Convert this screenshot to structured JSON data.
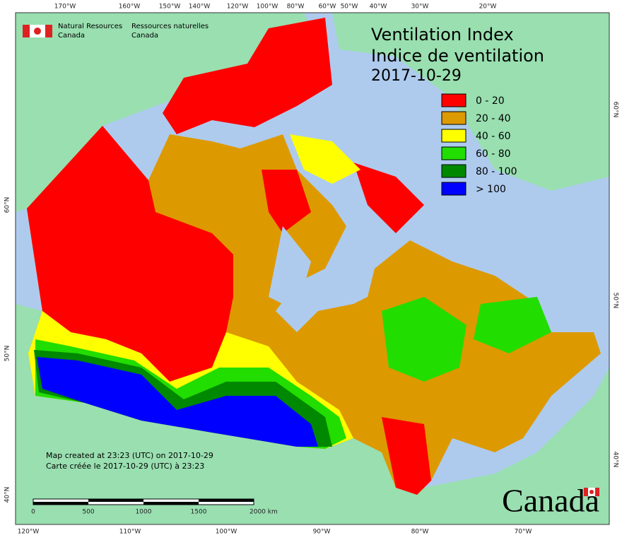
{
  "header": {
    "agency_en": [
      "Natural Resources",
      "Canada"
    ],
    "agency_fr": [
      "Ressources naturelles",
      "Canada"
    ]
  },
  "title": {
    "en": "Ventilation Index",
    "fr": "Indice de ventilation",
    "date": "2017-10-29"
  },
  "legend": [
    {
      "label": "0 - 20",
      "color": "#ff0000"
    },
    {
      "label": "20 - 40",
      "color": "#dd9900"
    },
    {
      "label": "40 - 60",
      "color": "#ffff00"
    },
    {
      "label": "60 - 80",
      "color": "#22dd00"
    },
    {
      "label": "80 - 100",
      "color": "#008800"
    },
    {
      "label": "> 100",
      "color": "#0000ff"
    }
  ],
  "top_longitudes": [
    "170°W",
    "160°W",
    "150°W",
    "140°W",
    "120°W",
    "100°W",
    "80°W",
    "60°W",
    "50°W",
    "40°W",
    "30°W",
    "20°W"
  ],
  "bottom_longitudes": [
    "120°W",
    "110°W",
    "100°W",
    "90°W",
    "80°W",
    "70°W"
  ],
  "left_latitudes": [
    "60°N",
    "50°N",
    "40°N"
  ],
  "right_latitudes": [
    "60°N",
    "50°N",
    "40°N"
  ],
  "footer": {
    "created_en": "Map created at 23:23 (UTC) on 2017-10-29",
    "created_fr": "Carte créée le 2017-10-29 (UTC) à 23:23"
  },
  "scale_bar": [
    "0",
    "500",
    "1000",
    "1500",
    "2000 km"
  ],
  "wordmark": "Canada"
}
